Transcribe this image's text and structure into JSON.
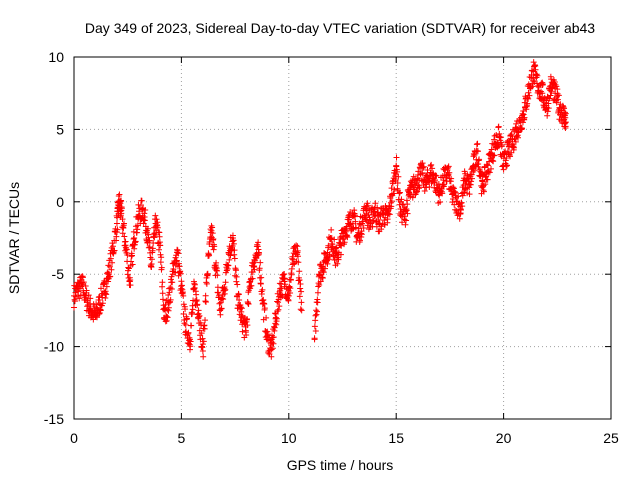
{
  "chart_data": {
    "type": "scatter",
    "title": "Day 349 of 2023, Sidereal Day-to-day VTEC variation (SDTVAR) for receiver ab43",
    "xlabel": "GPS time / hours",
    "ylabel": "SDTVAR / TECUs",
    "xlim": [
      0,
      25
    ],
    "ylim": [
      -15,
      10
    ],
    "xticks": [
      "0",
      "5",
      "10",
      "15",
      "20",
      "25"
    ],
    "yticks": [
      "-15",
      "-10",
      "-5",
      "0",
      "5",
      "10"
    ],
    "grid": true,
    "marker": "+",
    "color": "#ff0000",
    "series": [
      {
        "name": "SDTVAR",
        "x": [
          0.0,
          0.2,
          0.4,
          0.6,
          0.8,
          1.0,
          1.2,
          1.4,
          1.6,
          1.8,
          2.0,
          2.1,
          2.2,
          2.4,
          2.6,
          2.8,
          3.0,
          3.2,
          3.4,
          3.6,
          3.8,
          4.0,
          4.2,
          4.4,
          4.6,
          4.8,
          5.0,
          5.2,
          5.4,
          5.6,
          5.8,
          6.0,
          6.2,
          6.4,
          6.6,
          6.8,
          7.0,
          7.2,
          7.4,
          7.6,
          7.8,
          8.0,
          8.2,
          8.4,
          8.6,
          8.8,
          9.0,
          9.2,
          9.4,
          9.6,
          9.8,
          10.0,
          10.2,
          10.4,
          10.6,
          11.2,
          11.4,
          11.6,
          11.8,
          12.0,
          12.2,
          12.4,
          12.6,
          12.8,
          13.0,
          13.2,
          13.4,
          13.6,
          13.8,
          14.0,
          14.2,
          14.4,
          14.6,
          14.8,
          15.0,
          15.2,
          15.4,
          15.6,
          15.8,
          16.0,
          16.2,
          16.4,
          16.6,
          16.8,
          17.0,
          17.2,
          17.4,
          17.6,
          17.8,
          18.0,
          18.2,
          18.4,
          18.6,
          18.8,
          19.0,
          19.2,
          19.4,
          19.6,
          19.8,
          20.0,
          20.2,
          20.4,
          20.6,
          20.8,
          21.0,
          21.2,
          21.4,
          21.6,
          21.8,
          22.0,
          22.2,
          22.4,
          22.6,
          22.8,
          22.9
        ],
        "y": [
          -6.5,
          -6.0,
          -5.8,
          -6.8,
          -7.5,
          -7.9,
          -7.0,
          -6.2,
          -5.0,
          -3.5,
          -1.5,
          0.0,
          -0.8,
          -3.0,
          -5.5,
          -2.5,
          -1.0,
          -0.5,
          -2.0,
          -4.5,
          -1.5,
          -3.0,
          -8.0,
          -7.0,
          -5.0,
          -3.5,
          -6.0,
          -8.5,
          -9.5,
          -6.0,
          -7.5,
          -10.3,
          -5.0,
          -2.0,
          -4.5,
          -7.5,
          -6.0,
          -3.5,
          -2.5,
          -6.5,
          -8.0,
          -9.0,
          -5.5,
          -4.0,
          -3.5,
          -7.0,
          -9.5,
          -10.2,
          -8.0,
          -6.0,
          -5.5,
          -6.5,
          -4.0,
          -3.5,
          -7.5,
          -9.5,
          -5.0,
          -4.5,
          -3.5,
          -2.5,
          -4.0,
          -3.0,
          -2.0,
          -1.5,
          -1.0,
          -2.5,
          -1.5,
          -0.5,
          -1.5,
          -0.5,
          -1.5,
          -0.8,
          -1.2,
          0.5,
          2.5,
          -0.5,
          -1.0,
          0.5,
          1.0,
          1.5,
          2.0,
          1.2,
          2.0,
          1.5,
          0.5,
          1.5,
          2.0,
          0.5,
          0.0,
          -0.5,
          1.5,
          1.0,
          2.5,
          3.5,
          1.0,
          2.0,
          3.0,
          4.0,
          4.5,
          2.5,
          3.5,
          4.0,
          5.0,
          5.5,
          6.5,
          8.0,
          9.0,
          8.0,
          7.5,
          6.5,
          8.0,
          7.5,
          6.5,
          6.0,
          5.5
        ]
      }
    ]
  }
}
